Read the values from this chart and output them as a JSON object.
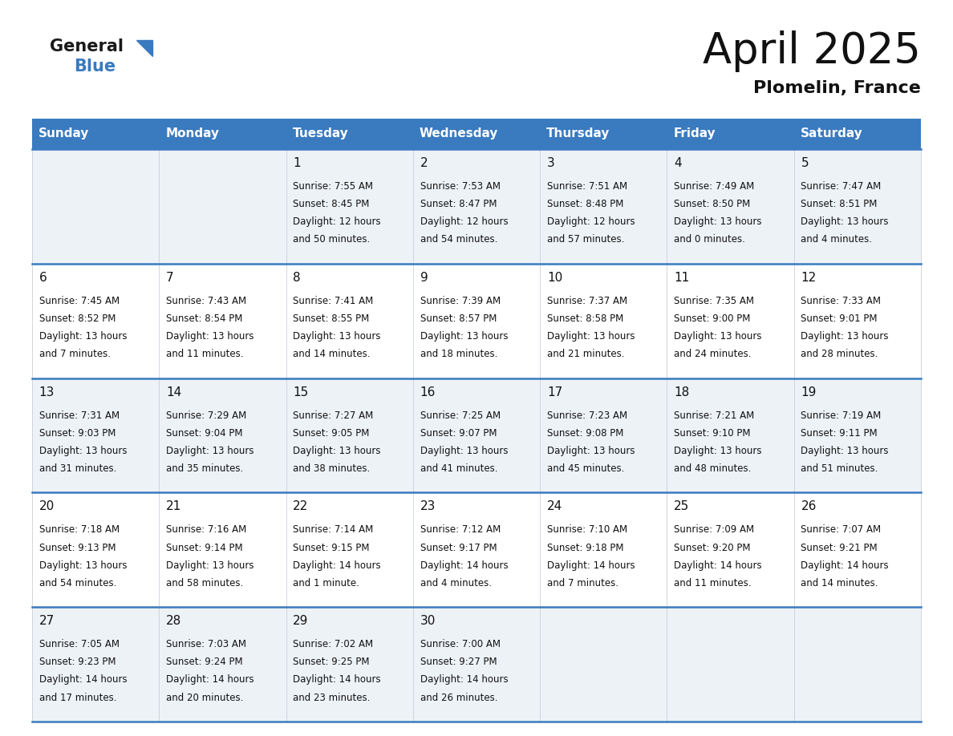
{
  "title": "April 2025",
  "subtitle": "Plomelin, France",
  "header_color": "#3a7abf",
  "header_text_color": "#ffffff",
  "weekdays": [
    "Sunday",
    "Monday",
    "Tuesday",
    "Wednesday",
    "Thursday",
    "Friday",
    "Saturday"
  ],
  "bg_color": "#ffffff",
  "cell_bg_even": "#edf2f7",
  "cell_bg_odd": "#ffffff",
  "row_line_color": "#3a7abf",
  "days": [
    {
      "day": null,
      "row": 0,
      "col": 0,
      "sunrise": null,
      "sunset": null,
      "daylight": null
    },
    {
      "day": null,
      "row": 0,
      "col": 1,
      "sunrise": null,
      "sunset": null,
      "daylight": null
    },
    {
      "day": "1",
      "row": 0,
      "col": 2,
      "sunrise": "7:55 AM",
      "sunset": "8:45 PM",
      "daylight": "12 hours and 50 minutes."
    },
    {
      "day": "2",
      "row": 0,
      "col": 3,
      "sunrise": "7:53 AM",
      "sunset": "8:47 PM",
      "daylight": "12 hours and 54 minutes."
    },
    {
      "day": "3",
      "row": 0,
      "col": 4,
      "sunrise": "7:51 AM",
      "sunset": "8:48 PM",
      "daylight": "12 hours and 57 minutes."
    },
    {
      "day": "4",
      "row": 0,
      "col": 5,
      "sunrise": "7:49 AM",
      "sunset": "8:50 PM",
      "daylight": "13 hours and 0 minutes."
    },
    {
      "day": "5",
      "row": 0,
      "col": 6,
      "sunrise": "7:47 AM",
      "sunset": "8:51 PM",
      "daylight": "13 hours and 4 minutes."
    },
    {
      "day": "6",
      "row": 1,
      "col": 0,
      "sunrise": "7:45 AM",
      "sunset": "8:52 PM",
      "daylight": "13 hours and 7 minutes."
    },
    {
      "day": "7",
      "row": 1,
      "col": 1,
      "sunrise": "7:43 AM",
      "sunset": "8:54 PM",
      "daylight": "13 hours and 11 minutes."
    },
    {
      "day": "8",
      "row": 1,
      "col": 2,
      "sunrise": "7:41 AM",
      "sunset": "8:55 PM",
      "daylight": "13 hours and 14 minutes."
    },
    {
      "day": "9",
      "row": 1,
      "col": 3,
      "sunrise": "7:39 AM",
      "sunset": "8:57 PM",
      "daylight": "13 hours and 18 minutes."
    },
    {
      "day": "10",
      "row": 1,
      "col": 4,
      "sunrise": "7:37 AM",
      "sunset": "8:58 PM",
      "daylight": "13 hours and 21 minutes."
    },
    {
      "day": "11",
      "row": 1,
      "col": 5,
      "sunrise": "7:35 AM",
      "sunset": "9:00 PM",
      "daylight": "13 hours and 24 minutes."
    },
    {
      "day": "12",
      "row": 1,
      "col": 6,
      "sunrise": "7:33 AM",
      "sunset": "9:01 PM",
      "daylight": "13 hours and 28 minutes."
    },
    {
      "day": "13",
      "row": 2,
      "col": 0,
      "sunrise": "7:31 AM",
      "sunset": "9:03 PM",
      "daylight": "13 hours and 31 minutes."
    },
    {
      "day": "14",
      "row": 2,
      "col": 1,
      "sunrise": "7:29 AM",
      "sunset": "9:04 PM",
      "daylight": "13 hours and 35 minutes."
    },
    {
      "day": "15",
      "row": 2,
      "col": 2,
      "sunrise": "7:27 AM",
      "sunset": "9:05 PM",
      "daylight": "13 hours and 38 minutes."
    },
    {
      "day": "16",
      "row": 2,
      "col": 3,
      "sunrise": "7:25 AM",
      "sunset": "9:07 PM",
      "daylight": "13 hours and 41 minutes."
    },
    {
      "day": "17",
      "row": 2,
      "col": 4,
      "sunrise": "7:23 AM",
      "sunset": "9:08 PM",
      "daylight": "13 hours and 45 minutes."
    },
    {
      "day": "18",
      "row": 2,
      "col": 5,
      "sunrise": "7:21 AM",
      "sunset": "9:10 PM",
      "daylight": "13 hours and 48 minutes."
    },
    {
      "day": "19",
      "row": 2,
      "col": 6,
      "sunrise": "7:19 AM",
      "sunset": "9:11 PM",
      "daylight": "13 hours and 51 minutes."
    },
    {
      "day": "20",
      "row": 3,
      "col": 0,
      "sunrise": "7:18 AM",
      "sunset": "9:13 PM",
      "daylight": "13 hours and 54 minutes."
    },
    {
      "day": "21",
      "row": 3,
      "col": 1,
      "sunrise": "7:16 AM",
      "sunset": "9:14 PM",
      "daylight": "13 hours and 58 minutes."
    },
    {
      "day": "22",
      "row": 3,
      "col": 2,
      "sunrise": "7:14 AM",
      "sunset": "9:15 PM",
      "daylight": "14 hours and 1 minute."
    },
    {
      "day": "23",
      "row": 3,
      "col": 3,
      "sunrise": "7:12 AM",
      "sunset": "9:17 PM",
      "daylight": "14 hours and 4 minutes."
    },
    {
      "day": "24",
      "row": 3,
      "col": 4,
      "sunrise": "7:10 AM",
      "sunset": "9:18 PM",
      "daylight": "14 hours and 7 minutes."
    },
    {
      "day": "25",
      "row": 3,
      "col": 5,
      "sunrise": "7:09 AM",
      "sunset": "9:20 PM",
      "daylight": "14 hours and 11 minutes."
    },
    {
      "day": "26",
      "row": 3,
      "col": 6,
      "sunrise": "7:07 AM",
      "sunset": "9:21 PM",
      "daylight": "14 hours and 14 minutes."
    },
    {
      "day": "27",
      "row": 4,
      "col": 0,
      "sunrise": "7:05 AM",
      "sunset": "9:23 PM",
      "daylight": "14 hours and 17 minutes."
    },
    {
      "day": "28",
      "row": 4,
      "col": 1,
      "sunrise": "7:03 AM",
      "sunset": "9:24 PM",
      "daylight": "14 hours and 20 minutes."
    },
    {
      "day": "29",
      "row": 4,
      "col": 2,
      "sunrise": "7:02 AM",
      "sunset": "9:25 PM",
      "daylight": "14 hours and 23 minutes."
    },
    {
      "day": "30",
      "row": 4,
      "col": 3,
      "sunrise": "7:00 AM",
      "sunset": "9:27 PM",
      "daylight": "14 hours and 26 minutes."
    },
    {
      "day": null,
      "row": 4,
      "col": 4,
      "sunrise": null,
      "sunset": null,
      "daylight": null
    },
    {
      "day": null,
      "row": 4,
      "col": 5,
      "sunrise": null,
      "sunset": null,
      "daylight": null
    },
    {
      "day": null,
      "row": 4,
      "col": 6,
      "sunrise": null,
      "sunset": null,
      "daylight": null
    }
  ],
  "logo_general_color": "#1a1a1a",
  "logo_blue_color": "#3a7abf",
  "logo_triangle_color": "#3a7abf",
  "title_fontsize": 38,
  "subtitle_fontsize": 16,
  "day_header_fontsize": 11,
  "day_num_fontsize": 11,
  "cell_text_fontsize": 8.5
}
